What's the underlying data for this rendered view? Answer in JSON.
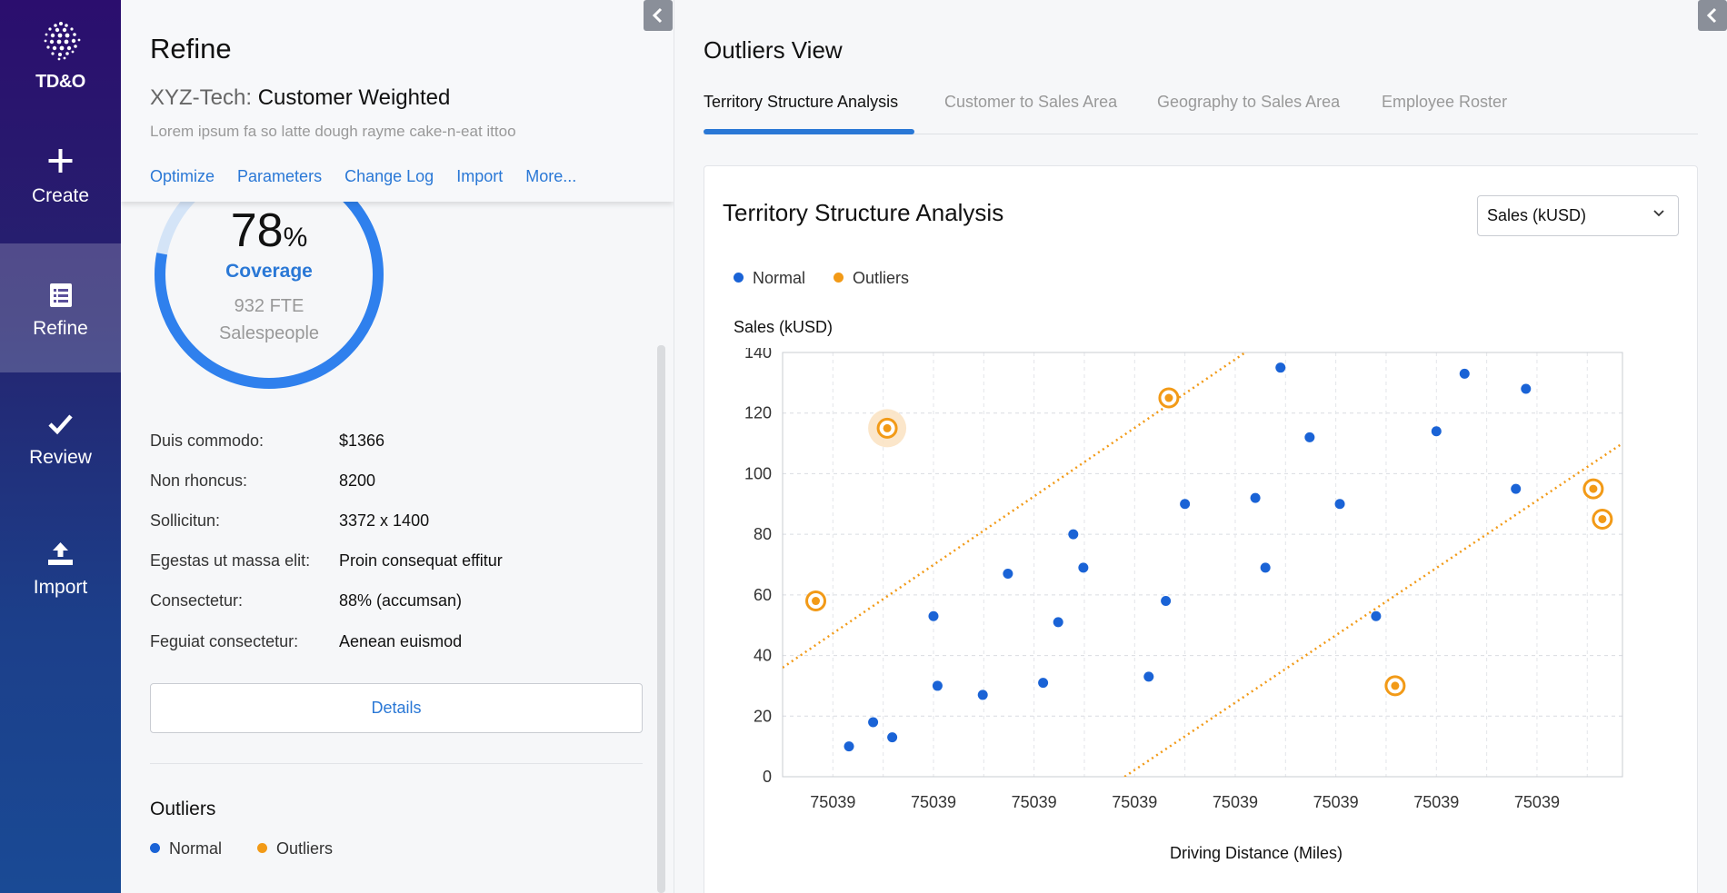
{
  "nav": {
    "logo_text": "TD&O",
    "items": [
      {
        "label": "Create",
        "icon": "plus-icon"
      },
      {
        "label": "Refine",
        "icon": "list-icon"
      },
      {
        "label": "Review",
        "icon": "check-icon"
      },
      {
        "label": "Import",
        "icon": "upload-icon"
      }
    ],
    "active": "Refine"
  },
  "refine": {
    "title": "Refine",
    "subtitle_prefix": "XYZ-Tech:",
    "subtitle": "Customer Weighted",
    "description": "Lorem ipsum fa so latte dough rayme cake-n-eat ittoo",
    "links": [
      "Optimize",
      "Parameters",
      "Change Log",
      "Import",
      "More..."
    ],
    "coverage": {
      "value": "78",
      "unit": "%",
      "label": "Coverage",
      "fte": "932 FTE",
      "fte_label": "Salespeople",
      "fraction": 0.78
    },
    "fields": [
      {
        "key": "Duis commodo:",
        "value": "$1366"
      },
      {
        "key": "Non rhoncus:",
        "value": "8200"
      },
      {
        "key": "Sollicitun:",
        "value": "3372 x 1400"
      },
      {
        "key": "Egestas ut massa elit:",
        "value": "Proin consequat effitur"
      },
      {
        "key": "Consectetur:",
        "value": "88% (accumsan)"
      },
      {
        "key": "Feguiat consectetur:",
        "value": "Aenean euismod"
      }
    ],
    "details_label": "Details",
    "outliers_title": "Outliers",
    "legend": {
      "normal": "Normal",
      "outliers": "Outliers"
    }
  },
  "view": {
    "title": "Outliers View",
    "tabs": [
      "Territory Structure Analysis",
      "Customer to Sales Area",
      "Geography to Sales Area",
      "Employee Roster"
    ],
    "active_tab": "Territory Structure Analysis"
  },
  "colors": {
    "accent": "#2a78d6",
    "normal": "#1a63d6",
    "outlier": "#f29a17"
  },
  "chart_data": {
    "type": "scatter",
    "title": "Territory Structure Analysis",
    "metric_select": "Sales (kUSD)",
    "ylabel": "Sales (kUSD)",
    "xlabel": "Driving Distance (Miles)",
    "ylim": [
      0,
      140
    ],
    "yticks": [
      0,
      20,
      40,
      60,
      80,
      100,
      120,
      140
    ],
    "xlim": [
      0,
      8.35
    ],
    "xticks": [
      "75039",
      "75039",
      "75039",
      "75039",
      "75039",
      "75039",
      "75039",
      "75039"
    ],
    "grid": true,
    "legend_position": "top-left",
    "series": [
      {
        "name": "Normal",
        "color": "#1a63d6",
        "points": [
          [
            0.66,
            10
          ],
          [
            0.9,
            18
          ],
          [
            1.09,
            13
          ],
          [
            1.5,
            53
          ],
          [
            1.54,
            30
          ],
          [
            1.99,
            27
          ],
          [
            2.24,
            67
          ],
          [
            2.59,
            31
          ],
          [
            2.74,
            51
          ],
          [
            2.89,
            80
          ],
          [
            2.99,
            69
          ],
          [
            3.64,
            33
          ],
          [
            3.81,
            58
          ],
          [
            4.0,
            90
          ],
          [
            4.7,
            92
          ],
          [
            4.8,
            69
          ],
          [
            4.95,
            135
          ],
          [
            5.24,
            112
          ],
          [
            5.54,
            90
          ],
          [
            5.9,
            53
          ],
          [
            6.5,
            114
          ],
          [
            6.78,
            133
          ],
          [
            7.29,
            95
          ],
          [
            7.39,
            128
          ]
        ]
      },
      {
        "name": "Outliers",
        "color": "#f29a17",
        "points": [
          [
            0.33,
            58
          ],
          [
            1.04,
            115
          ],
          [
            3.84,
            125
          ],
          [
            6.09,
            30
          ],
          [
            8.06,
            95
          ],
          [
            8.15,
            85
          ]
        ]
      }
    ],
    "bounds": [
      {
        "from": [
          0,
          36
        ],
        "to": [
          4.6,
          140
        ]
      },
      {
        "from": [
          3.4,
          0
        ],
        "to": [
          8.35,
          110
        ]
      }
    ],
    "highlighted_outlier": 1
  }
}
